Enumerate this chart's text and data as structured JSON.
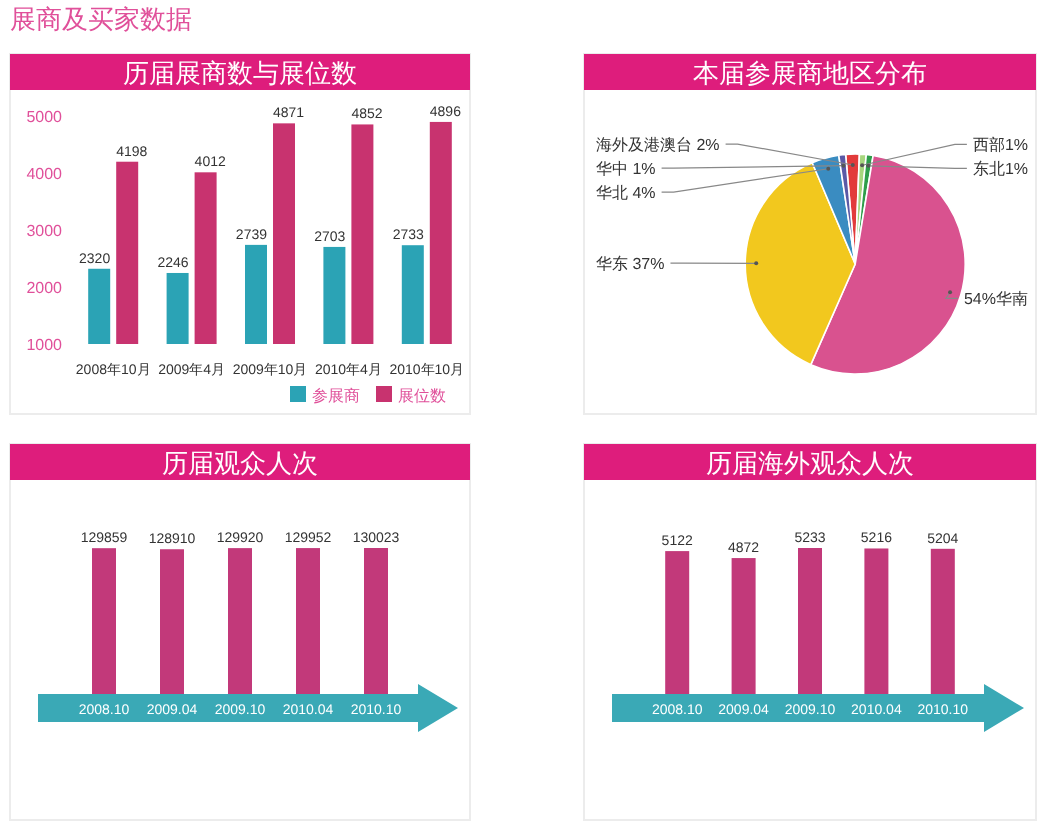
{
  "chart_data": [
    {
      "type": "bar",
      "title": "历届展商数与展位数",
      "annotations": [
        "展商及买家数据"
      ],
      "categories": [
        "2008年10月",
        "2009年4月",
        "2009年10月",
        "2010年4月",
        "2010年10月"
      ],
      "series": [
        {
          "name": "参展商",
          "color": "#2ba3b5",
          "values": [
            2320,
            2246,
            2739,
            2703,
            2733
          ]
        },
        {
          "name": "展位数",
          "color": "#c8336f",
          "values": [
            4198,
            4012,
            4871,
            4852,
            4896
          ]
        }
      ],
      "ylim": [
        1000,
        5000
      ],
      "yticks": [
        1000,
        2000,
        3000,
        4000,
        5000
      ],
      "data_labels": true,
      "legend": "bottom right"
    },
    {
      "type": "pie",
      "title": "本届参展商地区分布",
      "categories": [
        "海外及港澳台 2%",
        "西部1%",
        "东北1%",
        "54%华南",
        "华东 37%",
        "华北 4%",
        "华中 1%"
      ],
      "values": [
        2,
        1,
        1,
        54,
        37,
        4,
        1
      ],
      "colors": [
        "#e23b3b",
        "#a7d67e",
        "#2e9e4a",
        "#d9528f",
        "#f2c81e",
        "#3a8cc1",
        "#5b59a6"
      ]
    },
    {
      "type": "bar",
      "title": "历届观众人次",
      "categories": [
        "2008.10",
        "2009.04",
        "2009.10",
        "2010.04",
        "2010.10"
      ],
      "values": [
        129859,
        128910,
        129920,
        129952,
        130023
      ],
      "color": "#c2397a",
      "data_labels": true
    },
    {
      "type": "bar",
      "title": "历届海外观众人次",
      "categories": [
        "2008.10",
        "2009.04",
        "2009.10",
        "2010.04",
        "2010.10"
      ],
      "values": [
        5122,
        4872,
        5233,
        5216,
        5204
      ],
      "color": "#c2397a",
      "data_labels": true
    }
  ]
}
